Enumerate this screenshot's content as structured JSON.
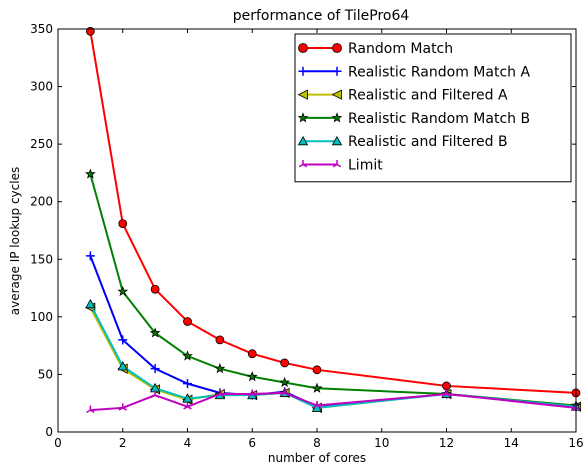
{
  "chart_data": {
    "type": "line",
    "title": "performance of TilePro64",
    "xlabel": "number of cores",
    "ylabel": "average IP lookup cycles",
    "xlim": [
      0,
      16
    ],
    "ylim": [
      0,
      350
    ],
    "xticks": [
      0,
      2,
      4,
      6,
      8,
      10,
      12,
      14,
      16
    ],
    "yticks": [
      0,
      50,
      100,
      150,
      200,
      250,
      300,
      350
    ],
    "grid": false,
    "legend_position": "top-right",
    "series": [
      {
        "name": "Random Match",
        "color": "#ff0000",
        "marker": "circle",
        "x": [
          1,
          2,
          3,
          4,
          5,
          6,
          7,
          8,
          12,
          16
        ],
        "y": [
          348,
          181,
          124,
          96,
          80,
          68,
          60,
          54,
          40,
          34
        ]
      },
      {
        "name": "Realistic Random Match A",
        "color": "#0000ff",
        "marker": "plus",
        "x": [
          1,
          2,
          3,
          4,
          5,
          6,
          7,
          8,
          12,
          16
        ],
        "y": [
          153,
          80,
          55,
          42,
          34,
          32,
          35,
          22,
          33,
          22
        ]
      },
      {
        "name": "Realistic and Filtered A",
        "color": "#bfbf00",
        "marker": "triangle-left",
        "x": [
          1,
          2,
          3,
          4,
          5,
          6,
          7,
          8,
          12,
          16
        ],
        "y": [
          108,
          55,
          37,
          28,
          33,
          32,
          34,
          21,
          33,
          22
        ]
      },
      {
        "name": "Realistic Random Match B",
        "color": "#008000",
        "marker": "star",
        "x": [
          1,
          2,
          3,
          4,
          5,
          6,
          7,
          8,
          12,
          16
        ],
        "y": [
          224,
          122,
          86,
          66,
          55,
          48,
          43,
          38,
          33,
          23
        ]
      },
      {
        "name": "Realistic and Filtered B",
        "color": "#00bfbf",
        "marker": "triangle-up",
        "x": [
          1,
          2,
          3,
          4,
          5,
          6,
          7,
          8,
          12,
          16
        ],
        "y": [
          111,
          57,
          38,
          29,
          32,
          32,
          34,
          21,
          33,
          22
        ]
      },
      {
        "name": "Limit",
        "color": "#bf00bf",
        "marker": "tri-up",
        "x": [
          1,
          2,
          3,
          4,
          5,
          6,
          7,
          8,
          12,
          16
        ],
        "y": [
          19,
          21,
          32,
          22,
          33,
          33,
          34,
          23,
          33,
          21
        ]
      }
    ]
  }
}
